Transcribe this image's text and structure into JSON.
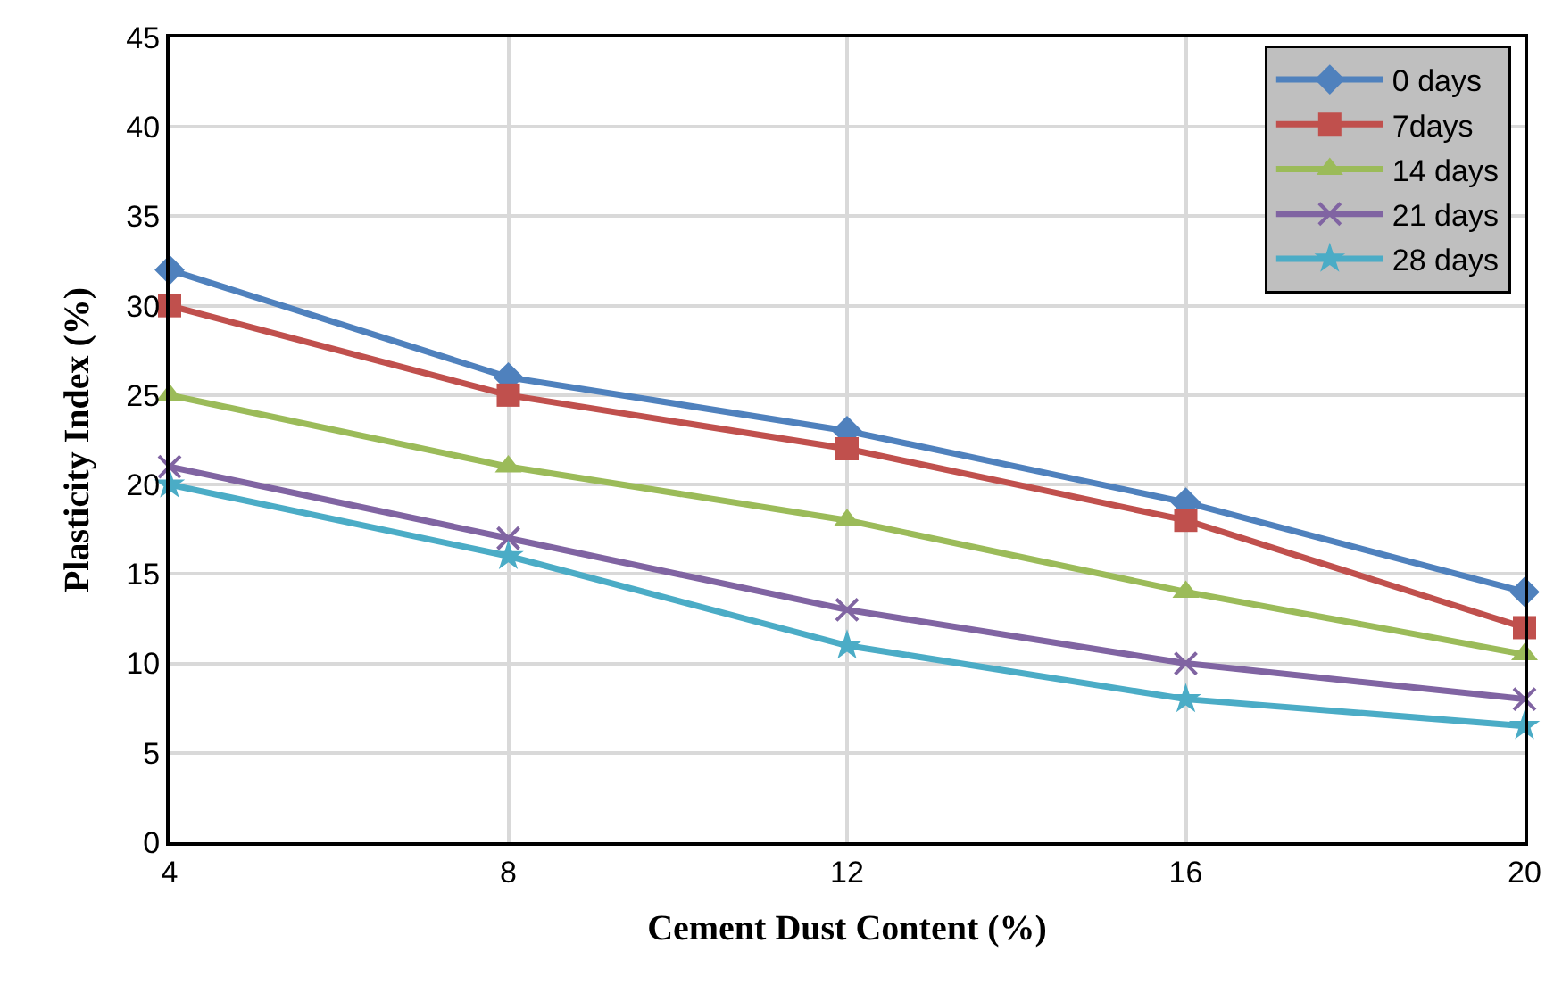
{
  "chart_data": {
    "type": "line",
    "xlabel": "Cement Dust Content (%)",
    "ylabel": "Plasticity Index (%)",
    "x": [
      4,
      8,
      12,
      16,
      20
    ],
    "series": [
      {
        "name": "0 days",
        "color": "#4f81bd",
        "marker": "diamond",
        "values": [
          32,
          26,
          23,
          19,
          14
        ]
      },
      {
        "name": "7days",
        "color": "#c0504d",
        "marker": "square",
        "values": [
          30,
          25,
          22,
          18,
          12
        ]
      },
      {
        "name": "14 days",
        "color": "#9bbb59",
        "marker": "triangle",
        "values": [
          25,
          21,
          18,
          14,
          10.5
        ]
      },
      {
        "name": "21 days",
        "color": "#8064a2",
        "marker": "cross",
        "values": [
          21,
          17,
          13,
          10,
          8
        ]
      },
      {
        "name": "28 days",
        "color": "#4bacc6",
        "marker": "star",
        "values": [
          20,
          16,
          11,
          8,
          6.5
        ]
      }
    ],
    "xlim": [
      4,
      20
    ],
    "xticks": [
      4,
      8,
      12,
      16,
      20
    ],
    "ylim": [
      0,
      45
    ],
    "yticks": [
      0,
      5,
      10,
      15,
      20,
      25,
      30,
      35,
      40,
      45
    ],
    "grid": true,
    "legend": "top right",
    "line_style": "solid"
  }
}
